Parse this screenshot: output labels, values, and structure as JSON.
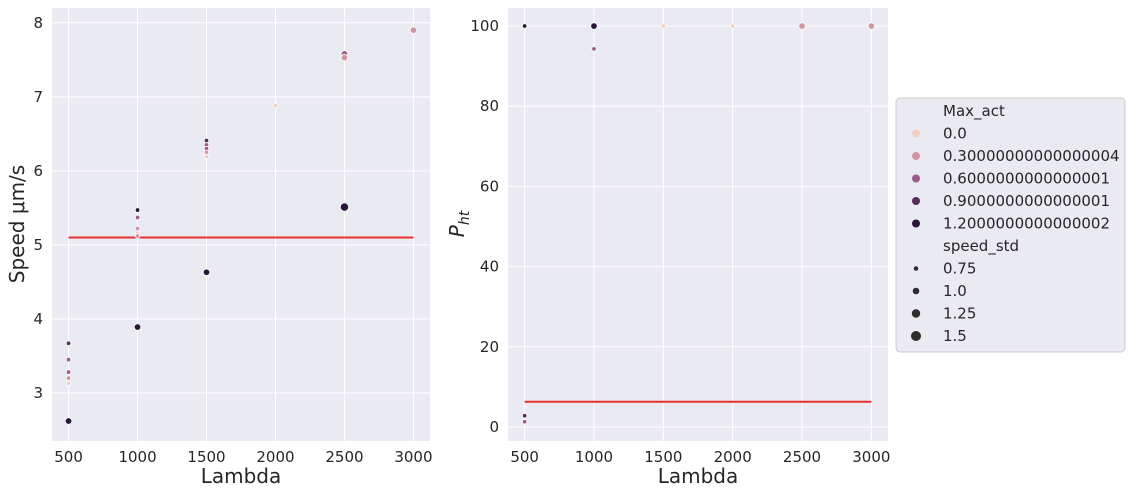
{
  "chart_data": [
    {
      "type": "scatter",
      "xlabel": "Lambda",
      "ylabel": "Speed μm/s",
      "xlim": [
        380,
        3120
      ],
      "ylim": [
        2.35,
        8.2
      ],
      "xticks": [
        500,
        1000,
        1500,
        2000,
        2500,
        3000
      ],
      "yticks": [
        3,
        4,
        5,
        6,
        7,
        8
      ],
      "grid": true,
      "hline": {
        "y": 5.1,
        "x": [
          500,
          3000
        ],
        "color": "#e8302e"
      },
      "points": [
        {
          "x": 500,
          "y": 3.67,
          "max_act": 0.9,
          "speed_std": 0.75
        },
        {
          "x": 500,
          "y": 3.45,
          "max_act": 0.6,
          "speed_std": 0.75
        },
        {
          "x": 500,
          "y": 3.28,
          "max_act": 0.6,
          "speed_std": 0.75
        },
        {
          "x": 500,
          "y": 3.2,
          "max_act": 0.3,
          "speed_std": 0.75
        },
        {
          "x": 500,
          "y": 3.13,
          "max_act": 0.0,
          "speed_std": 0.75
        },
        {
          "x": 500,
          "y": 2.62,
          "max_act": 1.2,
          "speed_std": 1.0
        },
        {
          "x": 1000,
          "y": 5.47,
          "max_act": 1.2,
          "speed_std": 0.75
        },
        {
          "x": 1000,
          "y": 5.37,
          "max_act": 0.6,
          "speed_std": 0.75
        },
        {
          "x": 1000,
          "y": 5.22,
          "max_act": 0.3,
          "speed_std": 0.75
        },
        {
          "x": 1000,
          "y": 5.16,
          "max_act": 0.0,
          "speed_std": 0.75
        },
        {
          "x": 1000,
          "y": 5.12,
          "max_act": 0.3,
          "speed_std": 0.75
        },
        {
          "x": 1000,
          "y": 3.89,
          "max_act": 1.2,
          "speed_std": 1.0
        },
        {
          "x": 1500,
          "y": 6.41,
          "max_act": 0.9,
          "speed_std": 0.75
        },
        {
          "x": 1500,
          "y": 6.35,
          "max_act": 0.6,
          "speed_std": 0.75
        },
        {
          "x": 1500,
          "y": 6.3,
          "max_act": 0.6,
          "speed_std": 0.75
        },
        {
          "x": 1500,
          "y": 6.25,
          "max_act": 0.3,
          "speed_std": 0.75
        },
        {
          "x": 1500,
          "y": 6.19,
          "max_act": 0.0,
          "speed_std": 0.75
        },
        {
          "x": 1500,
          "y": 4.63,
          "max_act": 1.2,
          "speed_std": 1.0
        },
        {
          "x": 2000,
          "y": 6.88,
          "max_act": 0.0,
          "speed_std": 0.75
        },
        {
          "x": 2500,
          "y": 7.58,
          "max_act": 0.6,
          "speed_std": 1.0
        },
        {
          "x": 2500,
          "y": 7.53,
          "max_act": 0.3,
          "speed_std": 1.0
        },
        {
          "x": 2500,
          "y": 5.51,
          "max_act": 1.2,
          "speed_std": 1.25
        },
        {
          "x": 3000,
          "y": 7.9,
          "max_act": 0.3,
          "speed_std": 1.0
        }
      ]
    },
    {
      "type": "scatter",
      "xlabel": "Lambda",
      "ylabel_main": "P",
      "ylabel_sub": "ht",
      "xlim": [
        380,
        3120
      ],
      "ylim": [
        -3.5,
        104.5
      ],
      "xticks": [
        500,
        1000,
        1500,
        2000,
        2500,
        3000
      ],
      "yticks": [
        0,
        20,
        40,
        60,
        80,
        100
      ],
      "grid": true,
      "hline": {
        "y": 6.3,
        "x": [
          500,
          3000
        ],
        "color": "#e8302e"
      },
      "points": [
        {
          "x": 500,
          "y": 100,
          "max_act": 0.6,
          "speed_std": 0.75
        },
        {
          "x": 500,
          "y": 100,
          "max_act": 1.2,
          "speed_std": 0.75
        },
        {
          "x": 500,
          "y": 2.8,
          "max_act": 0.9,
          "speed_std": 0.75
        },
        {
          "x": 500,
          "y": 1.3,
          "max_act": 0.6,
          "speed_std": 0.75
        },
        {
          "x": 1000,
          "y": 100,
          "max_act": 1.2,
          "speed_std": 1.0
        },
        {
          "x": 1000,
          "y": 94.3,
          "max_act": 0.6,
          "speed_std": 0.75
        },
        {
          "x": 1500,
          "y": 100,
          "max_act": 0.0,
          "speed_std": 0.75
        },
        {
          "x": 2000,
          "y": 100,
          "max_act": 0.0,
          "speed_std": 0.75
        },
        {
          "x": 2500,
          "y": 100,
          "max_act": 0.3,
          "speed_std": 1.0
        },
        {
          "x": 3000,
          "y": 100,
          "max_act": 0.3,
          "speed_std": 1.0
        }
      ]
    }
  ],
  "legend": {
    "placement": "right",
    "hue_title": "Max_act",
    "hue_items": [
      {
        "label": "0.0",
        "value": 0.0,
        "color": "#efd0c4"
      },
      {
        "label": "0.30000000000000004",
        "value": 0.3,
        "color": "#d295a6"
      },
      {
        "label": "0.6000000000000001",
        "value": 0.6,
        "color": "#9e5b8e"
      },
      {
        "label": "0.9000000000000001",
        "value": 0.9,
        "color": "#592d5e"
      },
      {
        "label": "1.2000000000000002",
        "value": 1.2,
        "color": "#2a1738"
      }
    ],
    "size_title": "speed_std",
    "size_items": [
      {
        "label": "0.75",
        "value": 0.75,
        "radius": 2.3
      },
      {
        "label": "1.0",
        "value": 1.0,
        "radius": 3.3
      },
      {
        "label": "1.25",
        "value": 1.25,
        "radius": 4.2
      },
      {
        "label": "1.5",
        "value": 1.5,
        "radius": 5.0
      }
    ],
    "size_color": "#2d2d2d"
  }
}
